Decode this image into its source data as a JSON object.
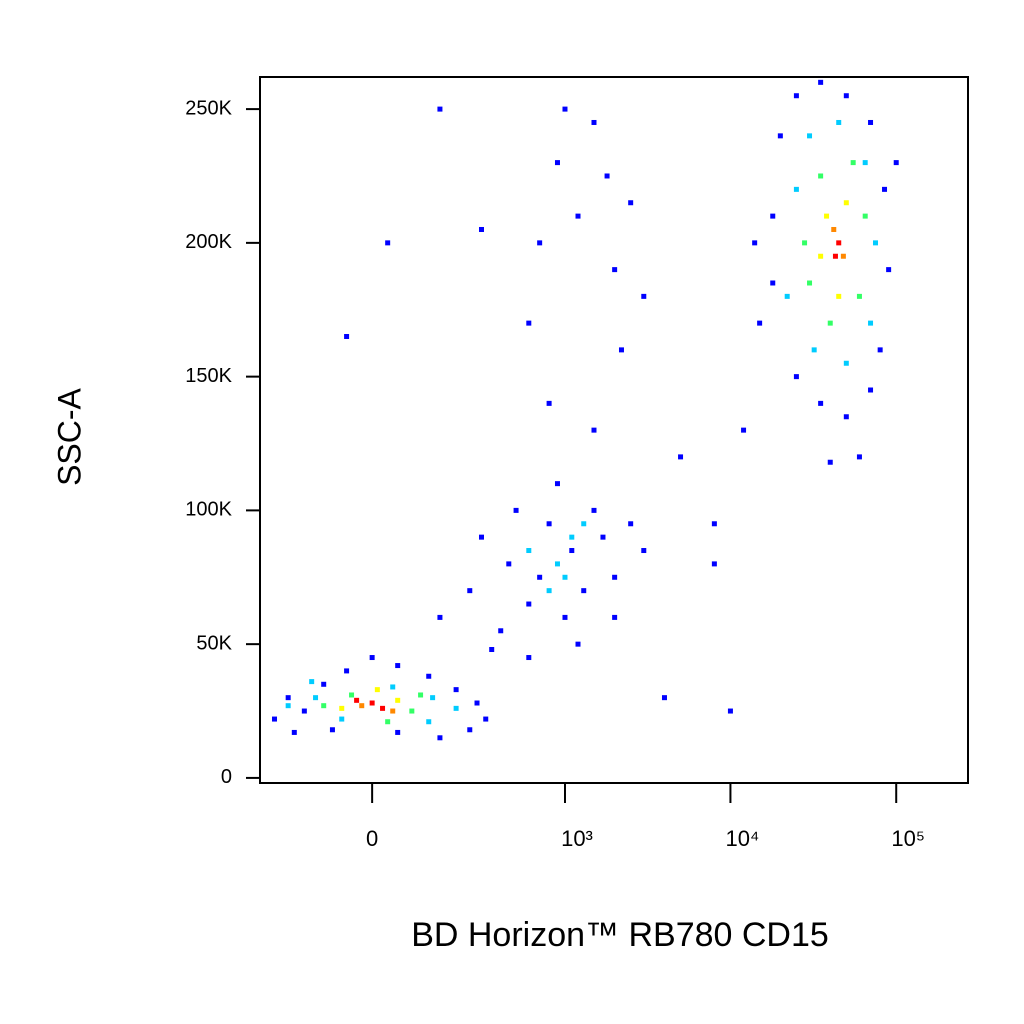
{
  "chart_data": {
    "type": "scatter",
    "x_label": "BD Horizon™ RB780 CD15",
    "y_label": "SSC-A",
    "x_scale": "biexponential",
    "xlim": [
      -313,
      271000
    ],
    "ylim": [
      -1900,
      262000
    ],
    "xticks": [
      0,
      {
        "value": 1000,
        "label": "10³"
      },
      {
        "value": 10000,
        "label": "10⁴"
      },
      {
        "value": 100000,
        "label": "10⁵"
      }
    ],
    "yticks": [
      0,
      {
        "value": 50000,
        "label": "50K"
      },
      {
        "value": 100000,
        "label": "100K"
      },
      {
        "value": 150000,
        "label": "150K"
      },
      {
        "value": 200000,
        "label": "200K"
      },
      {
        "value": 250000,
        "label": "250K"
      }
    ],
    "x": [
      -250,
      -200,
      -150,
      -100,
      -50,
      0,
      50,
      120,
      200,
      280,
      320,
      250,
      150,
      50,
      -80,
      -180,
      -200,
      -120,
      -60,
      40,
      130,
      200,
      120,
      -130,
      -100,
      -40,
      80,
      100,
      30,
      -60,
      50,
      10,
      -20,
      40,
      0,
      20,
      -30,
      150,
      250,
      300,
      400,
      450,
      500,
      600,
      700,
      800,
      900,
      1000,
      1100,
      1300,
      1500,
      1700,
      2000,
      2500,
      3000,
      350,
      600,
      1200,
      2000,
      600,
      900,
      1100,
      800,
      1300,
      1000,
      700,
      900,
      1200,
      1500,
      2000,
      600,
      1800,
      2500,
      1000,
      3000,
      800,
      1500,
      2200,
      5000,
      8000,
      4000,
      10000,
      8000,
      12000,
      -50,
      30,
      150,
      300,
      15000,
      18000,
      20000,
      25000,
      35000,
      50000,
      70000,
      85000,
      90000,
      80000,
      70000,
      50000,
      35000,
      25000,
      18000,
      60000,
      40000,
      100000,
      14000,
      22000,
      25000,
      30000,
      45000,
      65000,
      75000,
      70000,
      50000,
      32000,
      28000,
      35000,
      55000,
      65000,
      60000,
      40000,
      30000,
      38000,
      50000,
      45000,
      35000,
      42000,
      48000,
      43000,
      45000
    ],
    "values": [
      22000,
      30000,
      25000,
      35000,
      40000,
      45000,
      42000,
      38000,
      33000,
      28000,
      22000,
      18000,
      15000,
      17000,
      18000,
      17000,
      27000,
      30000,
      22000,
      34000,
      30000,
      26000,
      21000,
      36000,
      27000,
      31000,
      25000,
      31000,
      21000,
      26000,
      29000,
      33000,
      27000,
      25000,
      28000,
      26000,
      29000,
      60000,
      70000,
      90000,
      55000,
      80000,
      100000,
      65000,
      75000,
      95000,
      110000,
      60000,
      85000,
      70000,
      100000,
      90000,
      75000,
      95000,
      85000,
      48000,
      45000,
      50000,
      60000,
      85000,
      80000,
      90000,
      70000,
      95000,
      75000,
      200000,
      230000,
      210000,
      245000,
      190000,
      170000,
      225000,
      215000,
      250000,
      180000,
      140000,
      130000,
      160000,
      120000,
      80000,
      30000,
      25000,
      95000,
      130000,
      165000,
      200000,
      250000,
      205000,
      170000,
      210000,
      240000,
      255000,
      260000,
      255000,
      245000,
      220000,
      190000,
      160000,
      145000,
      135000,
      140000,
      150000,
      185000,
      120000,
      118000,
      230000,
      200000,
      180000,
      220000,
      240000,
      245000,
      230000,
      200000,
      170000,
      155000,
      160000,
      200000,
      225000,
      230000,
      210000,
      180000,
      170000,
      185000,
      210000,
      215000,
      180000,
      195000,
      205000,
      195000,
      195000,
      200000
    ],
    "colors": [
      "#0000ff",
      "#0000ff",
      "#0000ff",
      "#0000ff",
      "#0000ff",
      "#0000ff",
      "#0000ff",
      "#0000ff",
      "#0000ff",
      "#0000ff",
      "#0000ff",
      "#0000ff",
      "#0000ff",
      "#0000ff",
      "#0000ff",
      "#0000ff",
      "#00ccff",
      "#00ccff",
      "#00ccff",
      "#00ccff",
      "#00ccff",
      "#00ccff",
      "#00ccff",
      "#00ccff",
      "#33ff66",
      "#33ff66",
      "#33ff66",
      "#33ff66",
      "#33ff66",
      "#ffff00",
      "#ffff00",
      "#ffff00",
      "#ff8800",
      "#ff8800",
      "#ff0000",
      "#ff0000",
      "#ff0000",
      "#0000ff",
      "#0000ff",
      "#0000ff",
      "#0000ff",
      "#0000ff",
      "#0000ff",
      "#0000ff",
      "#0000ff",
      "#0000ff",
      "#0000ff",
      "#0000ff",
      "#0000ff",
      "#0000ff",
      "#0000ff",
      "#0000ff",
      "#0000ff",
      "#0000ff",
      "#0000ff",
      "#0000ff",
      "#0000ff",
      "#0000ff",
      "#0000ff",
      "#00ccff",
      "#00ccff",
      "#00ccff",
      "#00ccff",
      "#00ccff",
      "#00ccff",
      "#0000ff",
      "#0000ff",
      "#0000ff",
      "#0000ff",
      "#0000ff",
      "#0000ff",
      "#0000ff",
      "#0000ff",
      "#0000ff",
      "#0000ff",
      "#0000ff",
      "#0000ff",
      "#0000ff",
      "#0000ff",
      "#0000ff",
      "#0000ff",
      "#0000ff",
      "#0000ff",
      "#0000ff",
      "#0000ff",
      "#0000ff",
      "#0000ff",
      "#0000ff",
      "#0000ff",
      "#0000ff",
      "#0000ff",
      "#0000ff",
      "#0000ff",
      "#0000ff",
      "#0000ff",
      "#0000ff",
      "#0000ff",
      "#0000ff",
      "#0000ff",
      "#0000ff",
      "#0000ff",
      "#0000ff",
      "#0000ff",
      "#0000ff",
      "#0000ff",
      "#0000ff",
      "#0000ff",
      "#00ccff",
      "#00ccff",
      "#00ccff",
      "#00ccff",
      "#00ccff",
      "#00ccff",
      "#00ccff",
      "#00ccff",
      "#00ccff",
      "#33ff66",
      "#33ff66",
      "#33ff66",
      "#33ff66",
      "#33ff66",
      "#33ff66",
      "#33ff66",
      "#ffff00",
      "#ffff00",
      "#ffff00",
      "#ffff00",
      "#ff8800",
      "#ff8800",
      "#ff0000",
      "#ff0000"
    ]
  }
}
